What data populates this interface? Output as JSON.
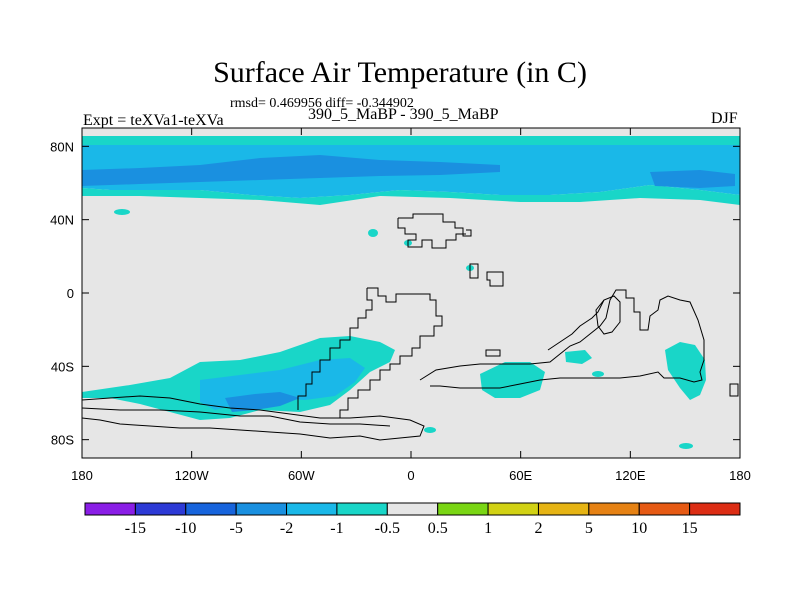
{
  "title": "Surface Air Temperature (in C)",
  "stats": "rmsd= 0.469956  diff= -0.344902",
  "experiment": "Expt = teXVa1-teXVa",
  "run": "390_5_MaBP - 390_5_MaBP",
  "season": "DJF",
  "map": {
    "lon_range": [
      -180,
      180
    ],
    "lat_range": [
      -90,
      90
    ],
    "background_color": "#e6e6e6",
    "lon_ticks": [
      {
        "value": -180,
        "label": "180"
      },
      {
        "value": -120,
        "label": "120W"
      },
      {
        "value": -60,
        "label": "60W"
      },
      {
        "value": 0,
        "label": "0"
      },
      {
        "value": 60,
        "label": "60E"
      },
      {
        "value": 120,
        "label": "120E"
      },
      {
        "value": 180,
        "label": "180"
      }
    ],
    "lat_ticks": [
      {
        "value": 80,
        "label": "80N"
      },
      {
        "value": 40,
        "label": "40N"
      },
      {
        "value": 0,
        "label": "0"
      },
      {
        "value": -40,
        "label": "40S"
      },
      {
        "value": -80,
        "label": "80S"
      }
    ]
  },
  "colorbar": {
    "colors": [
      "#8a1ee6",
      "#2d3ad6",
      "#1764dc",
      "#1a90e0",
      "#1ab8e8",
      "#19d6c8",
      "#e6e6e6",
      "#7ad614",
      "#d2d214",
      "#e6b414",
      "#e68214",
      "#e65a14",
      "#dc2d14"
    ],
    "labels": [
      "-15",
      "-10",
      "-5",
      "-2",
      "-1",
      "-0.5",
      "0.5",
      "1",
      "2",
      "5",
      "10",
      "15"
    ]
  }
}
